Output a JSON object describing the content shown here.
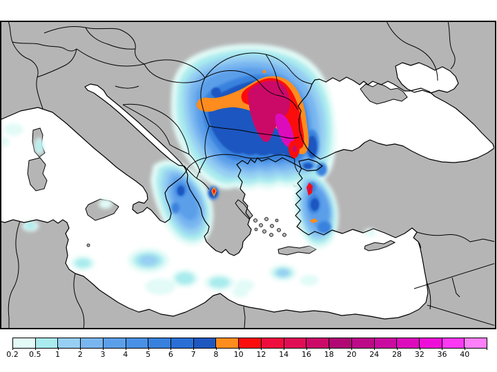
{
  "figure": {
    "kind": "precipitation-map-with-colorbar",
    "visible_text_note": "only colorbar tick labels are rendered text"
  },
  "map": {
    "colors": {
      "land": "#b5b5b5",
      "sea": "#ffffff",
      "coastline": "#000000",
      "country_border": "#000000",
      "frame": "#000000",
      "page_background": "#ffffff"
    }
  },
  "legend": {
    "orientation": "horizontal",
    "segment_count": 21,
    "bins": [
      {
        "label": "0.2",
        "color": "#e2fbf7"
      },
      {
        "label": "0.5",
        "color": "#a9ebee"
      },
      {
        "label": "1",
        "color": "#96cff2"
      },
      {
        "label": "2",
        "color": "#79b6f0"
      },
      {
        "label": "3",
        "color": "#5c9fe9"
      },
      {
        "label": "4",
        "color": "#4991e6"
      },
      {
        "label": "5",
        "color": "#3781dd"
      },
      {
        "label": "6",
        "color": "#2a6fd6"
      },
      {
        "label": "7",
        "color": "#1e57c0"
      },
      {
        "label": "8",
        "color": "#ff8c1e"
      },
      {
        "label": "10",
        "color": "#fb0d0d"
      },
      {
        "label": "12",
        "color": "#ef0d3d"
      },
      {
        "label": "14",
        "color": "#e00d55"
      },
      {
        "label": "16",
        "color": "#cb0a68"
      },
      {
        "label": "18",
        "color": "#b00973"
      },
      {
        "label": "20",
        "color": "#bc0a88"
      },
      {
        "label": "24",
        "color": "#ca0ba0"
      },
      {
        "label": "28",
        "color": "#dc0cbc"
      },
      {
        "label": "32",
        "color": "#ee0dd8"
      },
      {
        "label": "36",
        "color": "#fb38f3"
      },
      {
        "label": "40",
        "color": "#fd7ffa"
      }
    ]
  },
  "chart_data": {
    "type": "heatmap",
    "title": "",
    "legend_values": [
      0.2,
      0.5,
      1,
      2,
      3,
      4,
      5,
      6,
      7,
      8,
      10,
      12,
      14,
      16,
      18,
      20,
      24,
      28,
      32,
      36,
      40
    ],
    "region": "Mediterranean / Balkans / Black Sea",
    "maxima": [
      {
        "area": "Carpathians-to-Bulgaria band",
        "approx_peak_bin": "28-32"
      },
      {
        "area": "western Greece spot",
        "approx_peak_bin": "10-12"
      },
      {
        "area": "western Turkey spot",
        "approx_peak_bin": "14-16"
      }
    ]
  }
}
